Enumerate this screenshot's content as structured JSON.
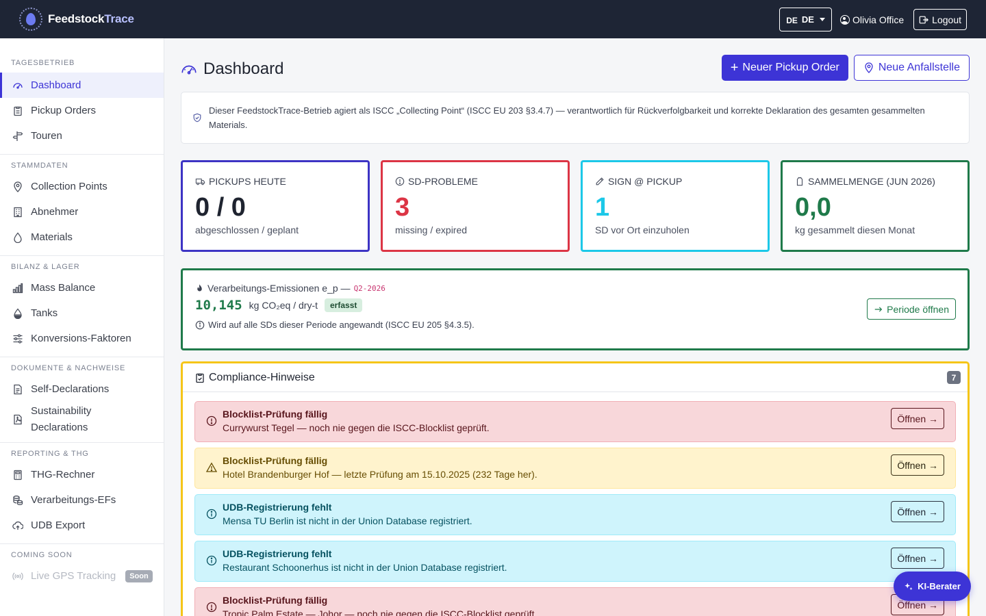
{
  "navbar": {
    "brand_part1": "Feedstock",
    "brand_part2": "Trace",
    "lang_code": "DE",
    "lang_label": "DE",
    "user_name": "Olivia Office",
    "logout_label": "Logout"
  },
  "sidebar": {
    "sections": [
      {
        "title": "TAGESBETRIEB",
        "items": [
          {
            "label": "Dashboard",
            "icon": "gauge-icon",
            "active": true
          },
          {
            "label": "Pickup Orders",
            "icon": "clipboard-icon"
          },
          {
            "label": "Touren",
            "icon": "signpost-icon"
          }
        ]
      },
      {
        "title": "STAMMDATEN",
        "items": [
          {
            "label": "Collection Points",
            "icon": "pin-icon"
          },
          {
            "label": "Abnehmer",
            "icon": "building-icon"
          },
          {
            "label": "Materials",
            "icon": "drop-icon"
          }
        ]
      },
      {
        "title": "BILANZ & LAGER",
        "items": [
          {
            "label": "Mass Balance",
            "icon": "bar-chart-icon"
          },
          {
            "label": "Tanks",
            "icon": "droplet-half-icon"
          },
          {
            "label": "Konversions-Faktoren",
            "icon": "sliders-icon"
          }
        ]
      },
      {
        "title": "DOKUMENTE & NACHWEISE",
        "items": [
          {
            "label": "Self-Declarations",
            "icon": "document-icon"
          },
          {
            "label": "Sustainability",
            "label2": "Declarations",
            "icon": "pdf-icon"
          }
        ]
      },
      {
        "title": "REPORTING & THG",
        "items": [
          {
            "label": "THG-Rechner",
            "icon": "calculator-icon"
          },
          {
            "label": "Verarbeitungs-EFs",
            "icon": "coins-icon"
          },
          {
            "label": "UDB Export",
            "icon": "cloud-upload-icon"
          }
        ]
      },
      {
        "title": "COMING SOON",
        "items": [
          {
            "label": "Live GPS Tracking",
            "icon": "broadcast-icon",
            "badge": "Soon"
          }
        ]
      }
    ]
  },
  "header": {
    "title": "Dashboard",
    "new_pickup_label": "Neuer Pickup Order",
    "new_point_label": "Neue Anfallstelle"
  },
  "info": {
    "text": "Dieser FeedstockTrace-Betrieb agiert als ISCC „Collecting Point“ (ISCC EU 203 §3.4.7) — verantwortlich für Rückverfolgbarkeit und korrekte Deklaration des gesamten gesammelten Materials."
  },
  "stats": [
    {
      "label": "PICKUPS HEUTE",
      "value": "0 / 0",
      "sub": "abgeschlossen / geplant",
      "color": "#3d34c4",
      "icon": "truck-icon"
    },
    {
      "label": "SD-PROBLEME",
      "value": "3",
      "sub": "missing / expired",
      "color": "#dc3545",
      "icon": "alert-circle-icon"
    },
    {
      "label": "SIGN @ PICKUP",
      "value": "1",
      "sub": "SD vor Ort einzuholen",
      "color": "#1cc8e8",
      "icon": "pen-icon"
    },
    {
      "label": "SAMMELMENGE (JUN 2026)",
      "value": "0,0",
      "sub": "kg gesammelt diesen Monat",
      "color": "#1f7a4a",
      "icon": "canister-icon"
    }
  ],
  "emissions": {
    "label": "Verarbeitungs-Emissionen e_p —",
    "period": "Q2-2026",
    "value": "10,145",
    "unit": "kg CO₂eq / dry-t",
    "badge": "erfasst",
    "note": "Wird auf alle SDs dieser Periode angewandt (ISCC EU 205 §4.3.5).",
    "button": "Periode öffnen"
  },
  "compliance": {
    "title": "Compliance-Hinweise",
    "count": "7",
    "alerts": [
      {
        "type": "danger",
        "title": "Blocklist-Prüfung fällig",
        "text": "Currywurst Tegel — noch nie gegen die ISCC-Blocklist geprüft.",
        "button": "Öffnen →"
      },
      {
        "type": "warning",
        "title": "Blocklist-Prüfung fällig",
        "text": "Hotel Brandenburger Hof — letzte Prüfung am 15.10.2025 (232 Tage her).",
        "button": "Öffnen →"
      },
      {
        "type": "info",
        "title": "UDB-Registrierung fehlt",
        "text": "Mensa TU Berlin ist nicht in der Union Database registriert.",
        "button": "Öffnen →"
      },
      {
        "type": "info",
        "title": "UDB-Registrierung fehlt",
        "text": "Restaurant Schoonerhus ist nicht in der Union Database registriert.",
        "button": "Öffnen →"
      },
      {
        "type": "danger",
        "title": "Blocklist-Prüfung fällig",
        "text": "Tropic Palm Estate — Johor — noch nie gegen die ISCC-Blocklist geprüft.",
        "button": "Öffnen →"
      }
    ]
  },
  "fab": {
    "label": "KI-Berater"
  }
}
